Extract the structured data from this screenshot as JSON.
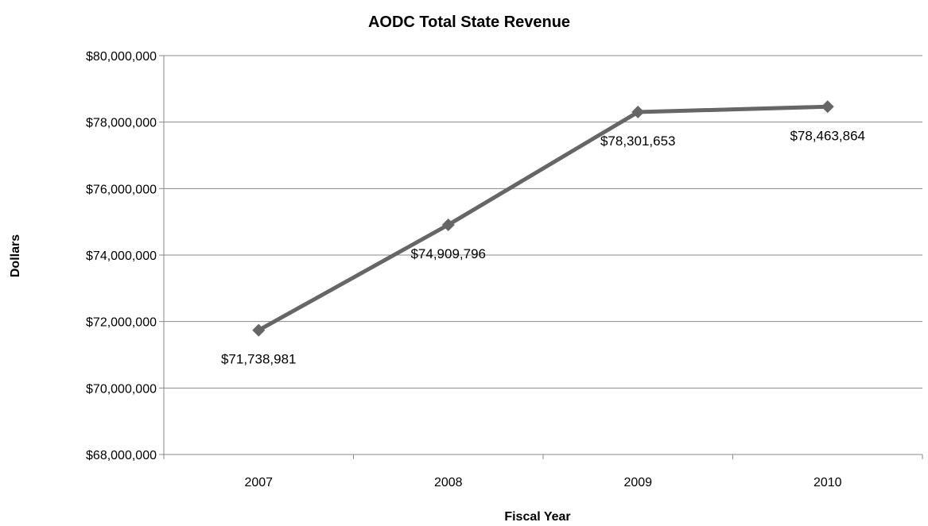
{
  "chart_data": {
    "type": "line",
    "title": "AODC Total State Revenue",
    "xlabel": "Fiscal Year",
    "ylabel": "Dollars",
    "categories": [
      "2007",
      "2008",
      "2009",
      "2010"
    ],
    "series": [
      {
        "values": [
          71738981,
          74909796,
          78301653,
          78463864
        ],
        "data_labels": [
          "$71,738,981",
          "$74,909,796",
          "$78,301,653",
          "$78,463,864"
        ]
      }
    ],
    "ylim": [
      68000000,
      80000000
    ],
    "y_ticks": [
      68000000,
      70000000,
      72000000,
      74000000,
      76000000,
      78000000,
      80000000
    ],
    "y_tick_labels": [
      "$68,000,000",
      "$70,000,000",
      "$72,000,000",
      "$74,000,000",
      "$76,000,000",
      "$78,000,000",
      "$80,000,000"
    ],
    "grid": "horizontal",
    "legend": "none",
    "line_color": "#666666",
    "grid_color": "#888888"
  }
}
